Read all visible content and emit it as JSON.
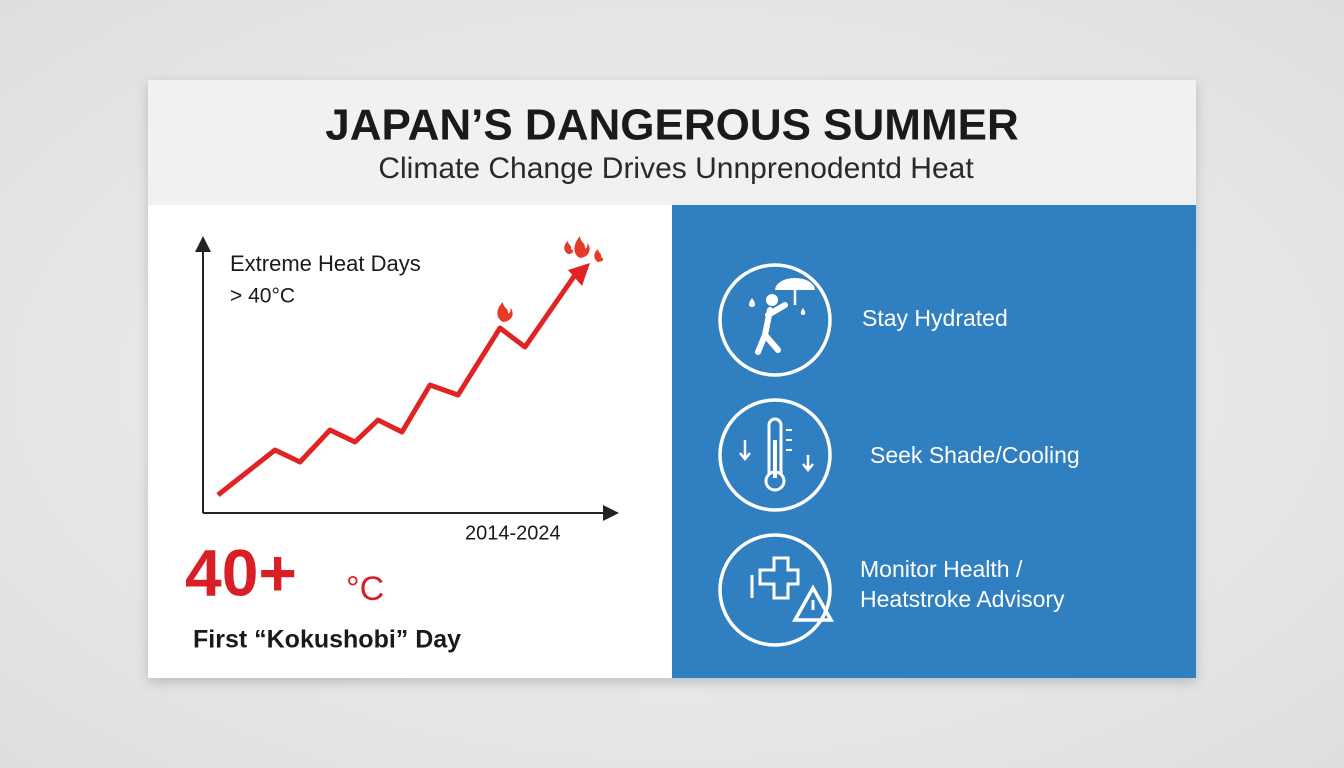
{
  "header": {
    "title": "JAPAN’S DANGEROUS SUMMER",
    "subtitle": "Climate Change Drives Unnprenodentd Heat"
  },
  "chart": {
    "label": "Extreme Heat Days",
    "sublabel": "> 40°C",
    "x_label": "2014-2024"
  },
  "highlight": {
    "value": "40+",
    "unit": "°C",
    "caption": "First “Kokushobi” Day"
  },
  "tips": [
    {
      "lines": [
        "Stay Hydrated"
      ]
    },
    {
      "lines": [
        "Seek Shade/Cooling"
      ]
    },
    {
      "lines": [
        "Monitor Health /",
        "Heatstroke Advisory"
      ]
    }
  ]
}
